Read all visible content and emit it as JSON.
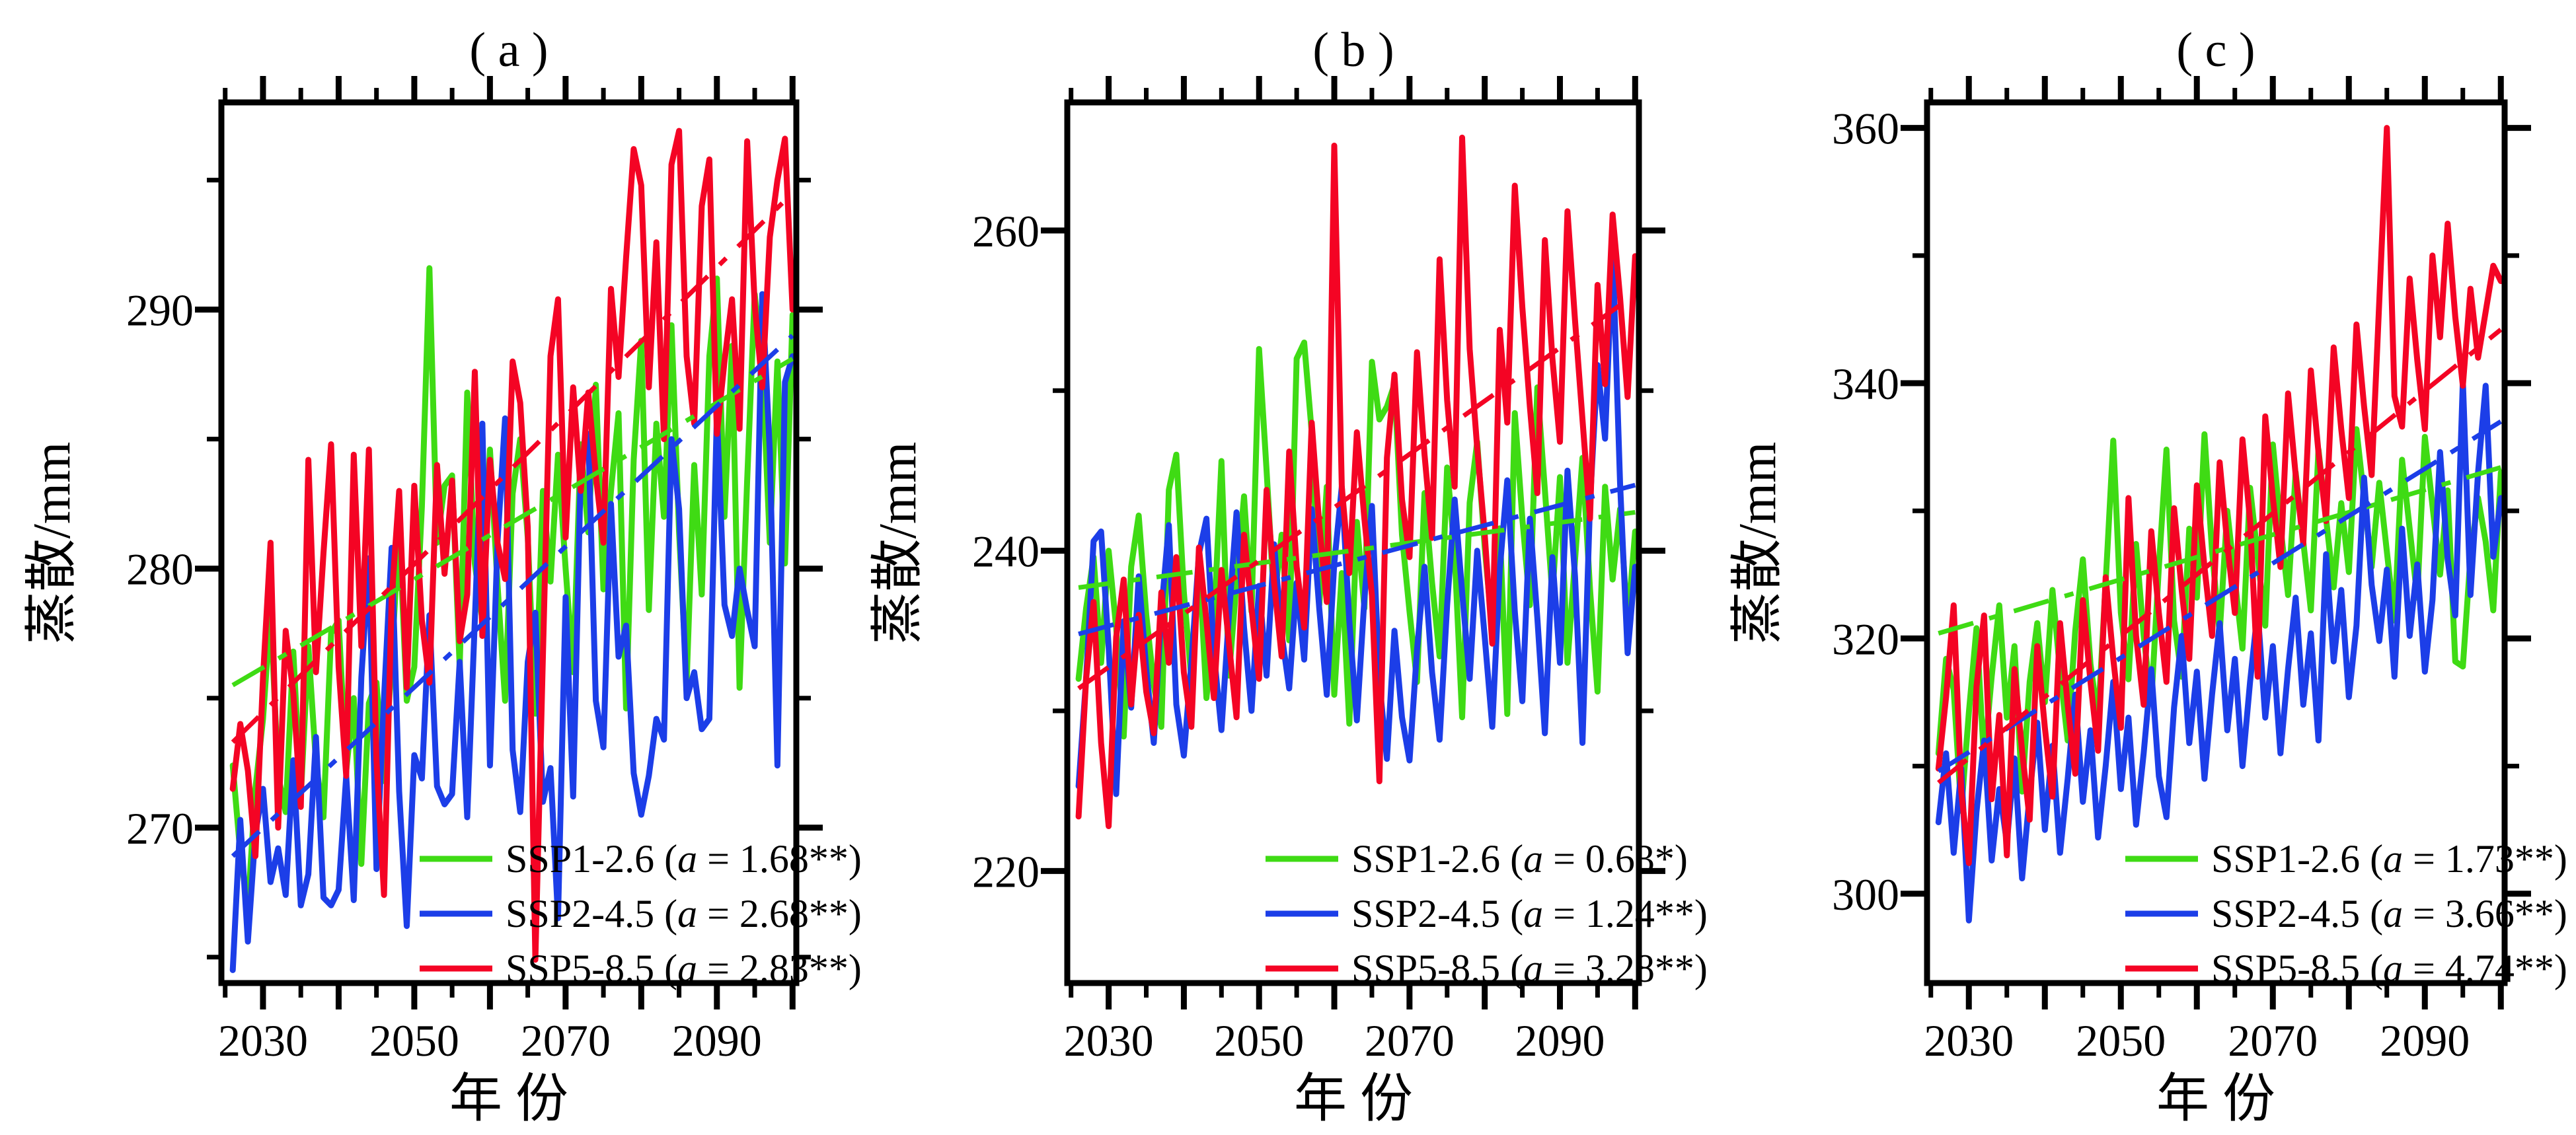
{
  "x_axis": {
    "label": "年 份",
    "range": [
      2024.5,
      2100.5
    ],
    "minor_step": 5,
    "major_step": 10,
    "labeled_ticks": [
      2030,
      2050,
      2070,
      2090
    ]
  },
  "years": [
    2026,
    2027,
    2028,
    2029,
    2030,
    2031,
    2032,
    2033,
    2034,
    2035,
    2036,
    2037,
    2038,
    2039,
    2040,
    2041,
    2042,
    2043,
    2044,
    2045,
    2046,
    2047,
    2048,
    2049,
    2050,
    2051,
    2052,
    2053,
    2054,
    2055,
    2056,
    2057,
    2058,
    2059,
    2060,
    2061,
    2062,
    2063,
    2064,
    2065,
    2066,
    2067,
    2068,
    2069,
    2070,
    2071,
    2072,
    2073,
    2074,
    2075,
    2076,
    2077,
    2078,
    2079,
    2080,
    2081,
    2082,
    2083,
    2084,
    2085,
    2086,
    2087,
    2088,
    2089,
    2090,
    2091,
    2092,
    2093,
    2094,
    2095,
    2096,
    2097,
    2098,
    2099,
    2100
  ],
  "colors": {
    "SSP1-2.6": "#3fdb14",
    "SSP2-4.5": "#1c3ee8",
    "SSP5-8.5": "#f40424"
  },
  "chart_data": [
    {
      "type": "line",
      "title": "( a )",
      "xlabel": "年 份",
      "ylabel": "蒸散/mm",
      "ylim": [
        264,
        298
      ],
      "y_major": [
        270,
        280,
        290
      ],
      "y_minor": [
        265,
        275,
        285,
        295
      ],
      "grid": false,
      "legend_position": "bottom-right",
      "series": [
        {
          "name": "SSP1-2.6",
          "color": "#3fdb14",
          "slope_var": "a",
          "slope_text": "1.68**",
          "trend": [
            275.5,
            288.1
          ],
          "values": [
            272.4,
            269.0,
            266.9,
            271.5,
            274.2,
            278.4,
            272.0,
            270.6,
            276.8,
            271.2,
            277.0,
            272.5,
            270.4,
            277.5,
            278.0,
            272.2,
            275.0,
            268.6,
            274.8,
            275.6,
            271.8,
            276.4,
            281.7,
            274.9,
            276.2,
            282.4,
            291.6,
            281.0,
            283.2,
            283.6,
            276.2,
            286.8,
            280.2,
            278.0,
            284.6,
            279.4,
            274.9,
            282.9,
            285.0,
            281.2,
            274.4,
            283.0,
            279.5,
            284.4,
            280.0,
            276.0,
            284.8,
            281.4,
            287.1,
            279.2,
            283.0,
            286.0,
            274.6,
            284.2,
            288.8,
            278.4,
            285.6,
            282.0,
            289.4,
            281.4,
            275.6,
            284.0,
            279.0,
            288.2,
            291.2,
            282.0,
            288.6,
            275.4,
            283.4,
            290.6,
            287.8,
            281.0,
            288.0,
            280.2,
            289.8
          ]
        },
        {
          "name": "SSP2-4.5",
          "color": "#1c3ee8",
          "slope_var": "a",
          "slope_text": "2.68**",
          "trend": [
            268.9,
            289.0
          ],
          "values": [
            264.5,
            270.3,
            265.6,
            269.8,
            271.5,
            267.9,
            269.2,
            267.4,
            272.6,
            267.0,
            268.2,
            273.5,
            267.3,
            267.0,
            267.6,
            272.0,
            267.2,
            275.8,
            280.4,
            268.4,
            275.0,
            280.8,
            271.4,
            266.2,
            272.8,
            271.9,
            278.2,
            271.6,
            270.9,
            271.3,
            276.4,
            270.4,
            278.0,
            285.6,
            272.4,
            281.0,
            285.8,
            273.0,
            270.6,
            276.4,
            278.3,
            271.0,
            272.3,
            266.5,
            278.9,
            271.2,
            283.8,
            285.2,
            274.9,
            273.1,
            282.5,
            276.6,
            277.8,
            272.1,
            270.5,
            272.0,
            274.2,
            273.4,
            285.0,
            282.3,
            275.0,
            276.0,
            273.8,
            274.2,
            286.0,
            278.6,
            277.4,
            280.0,
            278.4,
            277.0,
            290.6,
            284.5,
            272.4,
            287.2,
            288.2
          ]
        },
        {
          "name": "SSP5-8.5",
          "color": "#f40424",
          "slope_var": "a",
          "slope_text": "2.83**",
          "trend": [
            273.3,
            294.5
          ],
          "values": [
            271.5,
            274.0,
            272.2,
            268.9,
            275.8,
            281.0,
            270.0,
            277.6,
            275.2,
            270.8,
            284.2,
            276.0,
            280.6,
            284.8,
            276.2,
            272.0,
            284.4,
            277.0,
            284.6,
            272.6,
            267.4,
            278.8,
            283.0,
            275.4,
            283.2,
            278.0,
            275.6,
            284.0,
            279.8,
            283.4,
            277.2,
            279.0,
            287.6,
            277.4,
            284.2,
            281.0,
            279.6,
            288.0,
            286.4,
            281.6,
            264.9,
            276.6,
            288.2,
            290.4,
            281.2,
            287.0,
            283.0,
            286.8,
            283.6,
            281.0,
            290.8,
            287.4,
            292.0,
            296.2,
            294.8,
            287.0,
            292.6,
            285.0,
            295.6,
            296.9,
            288.2,
            285.6,
            294.0,
            295.8,
            285.2,
            288.0,
            290.4,
            285.4,
            296.5,
            290.2,
            287.0,
            292.8,
            295.0,
            296.6,
            290.0
          ]
        }
      ]
    },
    {
      "type": "line",
      "title": "( b )",
      "xlabel": "年 份",
      "ylabel": "蒸散/mm",
      "ylim": [
        213,
        268
      ],
      "y_major": [
        220,
        240,
        260
      ],
      "y_minor": [
        230,
        250
      ],
      "grid": false,
      "legend_position": "bottom-right",
      "series": [
        {
          "name": "SSP1-2.6",
          "color": "#3fdb14",
          "slope_var": "a",
          "slope_text": "0.63*",
          "trend": [
            237.7,
            242.4
          ],
          "values": [
            232.0,
            236.4,
            239.6,
            233.0,
            240.0,
            235.2,
            228.4,
            239.0,
            242.2,
            236.0,
            231.6,
            229.0,
            243.8,
            246.0,
            237.4,
            232.0,
            239.6,
            230.8,
            235.4,
            245.6,
            232.2,
            238.0,
            243.4,
            236.2,
            252.6,
            245.0,
            236.8,
            241.0,
            234.4,
            252.0,
            253.0,
            247.4,
            236.6,
            244.0,
            231.0,
            238.6,
            229.2,
            241.8,
            236.4,
            251.8,
            248.2,
            249.0,
            250.4,
            241.0,
            236.2,
            231.8,
            243.6,
            238.0,
            233.4,
            245.2,
            239.8,
            229.6,
            243.0,
            246.8,
            240.2,
            235.0,
            241.4,
            229.8,
            248.6,
            242.0,
            236.6,
            250.2,
            243.8,
            237.2,
            244.6,
            233.0,
            239.4,
            245.8,
            237.6,
            231.2,
            244.0,
            238.2,
            242.6,
            235.4,
            241.2
          ]
        },
        {
          "name": "SSP2-4.5",
          "color": "#1c3ee8",
          "slope_var": "a",
          "slope_text": "1.24**",
          "trend": [
            234.8,
            244.1
          ],
          "values": [
            225.3,
            232.0,
            240.6,
            241.2,
            234.0,
            224.8,
            235.6,
            230.2,
            238.4,
            232.6,
            228.0,
            236.2,
            241.6,
            230.4,
            227.2,
            233.0,
            239.8,
            242.0,
            233.6,
            228.8,
            236.0,
            242.4,
            235.2,
            230.0,
            237.8,
            232.2,
            240.4,
            234.8,
            231.4,
            238.0,
            233.2,
            242.6,
            236.4,
            231.0,
            239.2,
            244.0,
            235.6,
            229.4,
            237.0,
            242.8,
            231.8,
            227.0,
            235.0,
            229.6,
            226.9,
            233.8,
            239.0,
            232.4,
            228.2,
            236.6,
            243.2,
            237.4,
            232.0,
            240.0,
            234.6,
            229.0,
            238.8,
            244.4,
            236.2,
            230.6,
            242.0,
            235.8,
            228.6,
            239.6,
            233.0,
            245.0,
            238.4,
            228.0,
            243.0,
            251.6,
            247.0,
            258.8,
            244.2,
            233.6,
            239.0
          ]
        },
        {
          "name": "SSP5-8.5",
          "color": "#f40424",
          "slope_var": "a",
          "slope_text": "3.28**",
          "trend": [
            231.4,
            256.0
          ],
          "values": [
            223.4,
            232.0,
            236.8,
            228.0,
            222.8,
            234.6,
            238.2,
            230.4,
            236.0,
            231.2,
            228.6,
            237.4,
            233.0,
            239.6,
            232.4,
            229.0,
            240.2,
            235.6,
            230.8,
            238.8,
            234.2,
            229.6,
            241.0,
            236.4,
            232.0,
            243.8,
            238.0,
            233.4,
            246.2,
            239.0,
            235.2,
            248.0,
            241.6,
            236.8,
            265.3,
            244.0,
            238.6,
            247.4,
            242.0,
            237.2,
            225.6,
            245.8,
            251.0,
            243.2,
            239.6,
            252.4,
            246.0,
            240.8,
            258.2,
            249.4,
            244.0,
            265.8,
            252.6,
            246.4,
            241.0,
            234.2,
            253.8,
            248.0,
            262.8,
            255.2,
            249.0,
            243.6,
            259.4,
            252.0,
            246.8,
            261.2,
            254.4,
            248.2,
            242.0,
            256.6,
            250.4,
            261.0,
            255.8,
            249.6,
            258.4
          ]
        }
      ]
    },
    {
      "type": "line",
      "title": "( c )",
      "xlabel": "年 份",
      "ylabel": "蒸散/mm",
      "ylim": [
        293,
        362
      ],
      "y_major": [
        300,
        320,
        340,
        360
      ],
      "y_minor": [
        310,
        330,
        350
      ],
      "grid": false,
      "legend_position": "bottom-right",
      "series": [
        {
          "name": "SSP1-2.6",
          "color": "#3fdb14",
          "slope_var": "a",
          "slope_text": "1.73**",
          "trend": [
            320.4,
            333.4
          ],
          "values": [
            311.0,
            318.4,
            316.0,
            306.5,
            314.2,
            320.8,
            310.4,
            317.0,
            322.6,
            313.8,
            319.4,
            308.0,
            316.6,
            321.2,
            315.0,
            323.8,
            317.4,
            312.0,
            320.6,
            326.2,
            318.0,
            313.6,
            324.4,
            335.5,
            322.0,
            316.8,
            327.4,
            320.2,
            315.0,
            325.6,
            334.8,
            321.4,
            317.0,
            328.6,
            323.2,
            336.0,
            326.8,
            320.4,
            330.0,
            324.6,
            319.2,
            331.8,
            326.4,
            321.0,
            335.2,
            328.8,
            323.4,
            333.0,
            327.6,
            322.2,
            334.8,
            329.4,
            324.0,
            330.6,
            325.2,
            336.4,
            331.0,
            325.6,
            332.2,
            326.8,
            321.4,
            334.0,
            328.6,
            323.2,
            335.8,
            330.4,
            325.0,
            331.6,
            318.2,
            317.8,
            326.4,
            331.0,
            327.6,
            322.2,
            333.0
          ]
        },
        {
          "name": "SSP2-4.5",
          "color": "#1c3ee8",
          "slope_var": "a",
          "slope_text": "3.66**",
          "trend": [
            309.6,
            337.0
          ],
          "values": [
            305.6,
            311.0,
            303.2,
            309.8,
            297.9,
            306.4,
            312.0,
            302.6,
            308.2,
            304.0,
            310.6,
            301.2,
            307.8,
            313.4,
            305.0,
            311.6,
            303.2,
            309.0,
            315.6,
            307.2,
            312.8,
            304.4,
            310.0,
            316.6,
            308.2,
            313.8,
            305.4,
            311.0,
            317.6,
            309.2,
            306.0,
            314.6,
            320.2,
            311.8,
            317.4,
            309.0,
            315.6,
            321.2,
            312.8,
            318.4,
            310.0,
            316.6,
            322.2,
            313.8,
            319.4,
            311.0,
            317.6,
            323.2,
            314.8,
            320.4,
            312.0,
            326.6,
            318.2,
            323.8,
            315.4,
            321.0,
            332.6,
            324.2,
            319.8,
            325.4,
            317.0,
            328.6,
            320.2,
            325.8,
            317.4,
            323.0,
            334.6,
            326.2,
            321.8,
            340.2,
            323.4,
            333.0,
            339.8,
            326.4,
            331.0
          ]
        },
        {
          "name": "SSP5-8.5",
          "color": "#f40424",
          "slope_var": "a",
          "slope_text": "4.74**",
          "trend": [
            308.7,
            344.2
          ],
          "values": [
            309.8,
            315.4,
            322.6,
            308.0,
            302.4,
            316.2,
            321.8,
            307.4,
            314.0,
            303.0,
            317.6,
            311.2,
            305.8,
            319.4,
            313.0,
            307.6,
            321.2,
            314.8,
            309.4,
            323.0,
            316.6,
            311.2,
            324.8,
            318.4,
            313.0,
            331.0,
            320.2,
            314.8,
            328.4,
            322.0,
            316.6,
            330.2,
            323.8,
            318.4,
            332.0,
            325.6,
            320.2,
            333.8,
            327.4,
            322.0,
            335.6,
            329.2,
            317.0,
            337.4,
            331.0,
            325.6,
            339.2,
            332.8,
            327.4,
            341.0,
            334.6,
            329.2,
            342.8,
            336.4,
            331.0,
            344.6,
            338.2,
            332.8,
            346.4,
            360.0,
            339.0,
            336.6,
            348.2,
            341.8,
            336.4,
            350.0,
            343.6,
            352.5,
            345.2,
            339.8,
            347.4,
            342.0,
            345.6,
            349.2,
            348.0
          ]
        }
      ]
    }
  ]
}
